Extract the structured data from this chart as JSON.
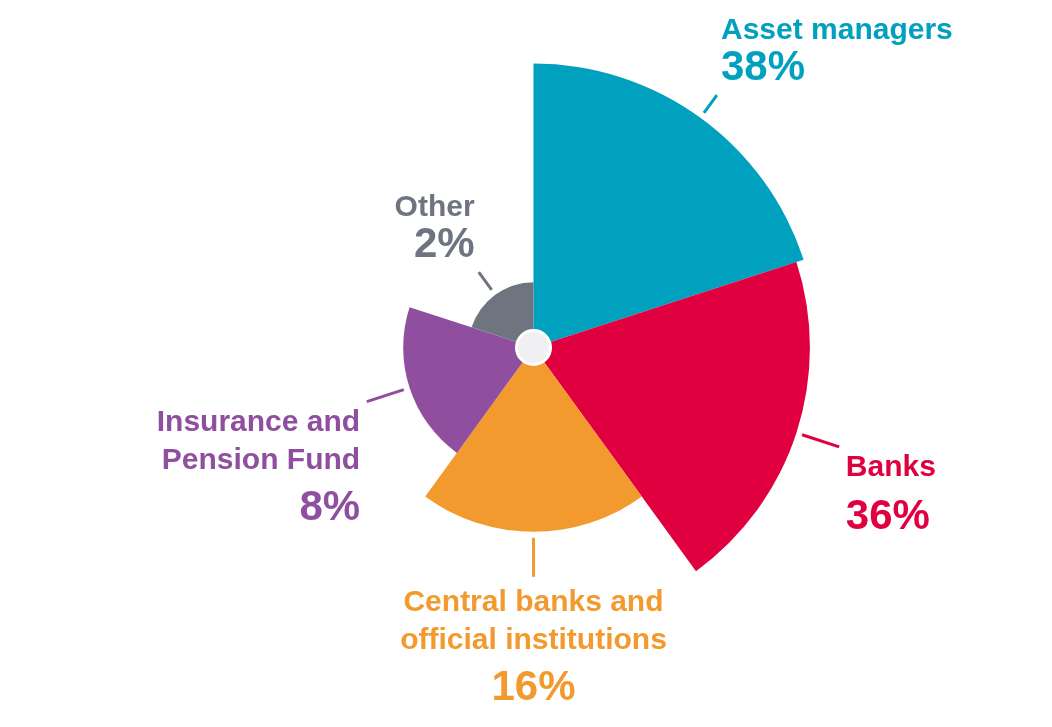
{
  "chart_data": {
    "type": "other",
    "categories": [
      "Asset managers",
      "Banks",
      "Central banks and official institutions",
      "Insurance and Pension Fund",
      "Other"
    ],
    "values": [
      38,
      36,
      16,
      8,
      2
    ],
    "value_labels": [
      "38%",
      "36%",
      "16%",
      "8%",
      "2%"
    ],
    "colors": [
      "#00a0bf",
      "#e00040",
      "#f39a2e",
      "#8f4f9e",
      "#6e7580"
    ]
  }
}
